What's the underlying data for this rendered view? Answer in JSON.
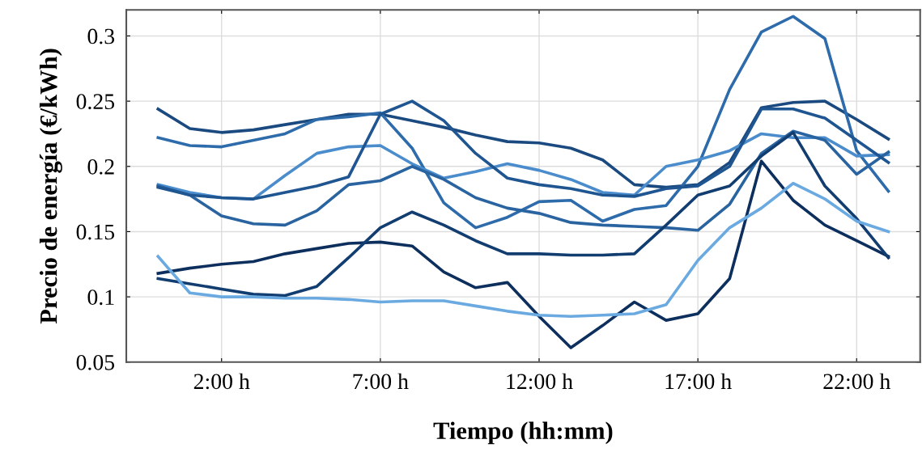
{
  "chart_data": {
    "type": "line",
    "xlabel": "Tiempo (hh:mm)",
    "ylabel": "Precio de energía (€/kWh)",
    "categories": [
      null,
      null,
      "2:00 h",
      null,
      null,
      null,
      null,
      "7:00 h",
      null,
      null,
      null,
      null,
      "12:00 h",
      null,
      null,
      null,
      null,
      "17:00 h",
      null,
      null,
      null,
      null,
      "22:00 h",
      null
    ],
    "ylim": [
      0.05,
      0.32
    ],
    "yticks": [
      0.05,
      0.1,
      0.15,
      0.2,
      0.25,
      0.3
    ],
    "grid": true,
    "line_style": "solid",
    "marker": "none",
    "series": [
      {
        "color": "#1b4a80",
        "values": [
          0.244,
          0.229,
          0.226,
          0.228,
          0.232,
          0.236,
          0.24,
          0.24,
          0.235,
          0.23,
          0.224,
          0.219,
          0.218,
          0.214,
          0.205,
          0.186,
          0.184,
          0.186,
          0.203,
          0.245,
          0.249,
          0.25,
          0.236,
          0.221
        ]
      },
      {
        "color": "#2d6bab",
        "values": [
          0.222,
          0.216,
          0.215,
          0.22,
          0.225,
          0.236,
          0.238,
          0.241,
          0.214,
          0.172,
          0.153,
          0.161,
          0.173,
          0.174,
          0.158,
          0.167,
          0.17,
          0.2,
          0.259,
          0.303,
          0.315,
          0.298,
          0.212,
          0.181
        ]
      },
      {
        "color": "#4a8ccc",
        "values": [
          0.186,
          0.18,
          0.176,
          0.175,
          0.193,
          0.21,
          0.215,
          0.216,
          0.202,
          0.191,
          0.196,
          0.202,
          0.197,
          0.19,
          0.18,
          0.178,
          0.2,
          0.205,
          0.212,
          0.225,
          0.222,
          0.222,
          0.208,
          0.209
        ]
      },
      {
        "color": "#2a64a0",
        "values": [
          0.185,
          0.178,
          0.162,
          0.156,
          0.155,
          0.166,
          0.186,
          0.189,
          0.2,
          0.19,
          0.176,
          0.168,
          0.164,
          0.157,
          0.155,
          0.154,
          0.153,
          0.151,
          0.171,
          0.21,
          0.227,
          0.22,
          0.194,
          0.211
        ]
      },
      {
        "color": "#1f5590",
        "values": [
          0.184,
          0.178,
          0.176,
          0.175,
          0.18,
          0.185,
          0.192,
          0.24,
          0.25,
          0.235,
          0.21,
          0.191,
          0.186,
          0.183,
          0.178,
          0.177,
          0.183,
          0.185,
          0.2,
          0.244,
          0.244,
          0.237,
          0.22,
          0.203
        ]
      },
      {
        "color": "#0d2f5e",
        "values": [
          0.118,
          0.122,
          0.125,
          0.127,
          0.133,
          0.137,
          0.141,
          0.142,
          0.139,
          0.119,
          0.107,
          0.111,
          0.085,
          0.061,
          0.078,
          0.096,
          0.082,
          0.087,
          0.114,
          0.204,
          0.174,
          0.155,
          0.143,
          0.131
        ]
      },
      {
        "color": "#123d70",
        "values": [
          0.114,
          0.11,
          0.106,
          0.102,
          0.101,
          0.108,
          0.13,
          0.153,
          0.165,
          0.155,
          0.143,
          0.133,
          0.133,
          0.132,
          0.132,
          0.133,
          0.155,
          0.178,
          0.185,
          0.208,
          0.226,
          0.185,
          0.16,
          0.13
        ]
      },
      {
        "color": "#6aaae0",
        "values": [
          0.131,
          0.103,
          0.1,
          0.1,
          0.099,
          0.099,
          0.098,
          0.096,
          0.097,
          0.097,
          0.093,
          0.089,
          0.086,
          0.085,
          0.086,
          0.087,
          0.094,
          0.128,
          0.153,
          0.168,
          0.187,
          0.175,
          0.158,
          0.15
        ]
      }
    ]
  }
}
